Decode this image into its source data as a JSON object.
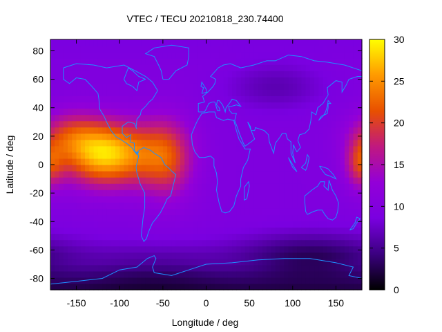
{
  "chart_data": {
    "type": "heatmap",
    "title": "VTEC / TECU 20210818_230.74400",
    "xlabel": "Longitude / deg",
    "ylabel": "Latitude / deg",
    "xlim": [
      -180,
      180
    ],
    "ylim": [
      -88,
      88
    ],
    "x_ticks": [
      -150,
      -100,
      -50,
      0,
      50,
      100,
      150
    ],
    "x_tick_labels": [
      "-150",
      "-100",
      "-50",
      "0",
      "50",
      "100",
      "150"
    ],
    "y_ticks": [
      80,
      60,
      40,
      20,
      0,
      -20,
      -40,
      -60,
      -80
    ],
    "y_tick_labels": [
      "80",
      "60",
      "40",
      "20",
      "0",
      "-20",
      "-40",
      "-60",
      "-80"
    ],
    "colorbar": {
      "range": [
        0,
        30
      ],
      "ticks": [
        0,
        5,
        10,
        15,
        20,
        25,
        30
      ],
      "tick_labels": [
        "0",
        "5",
        "10",
        "15",
        "20",
        "25",
        "30"
      ]
    },
    "grid": false,
    "overlay": "continent coastlines",
    "features": [
      {
        "lon": -115,
        "lat": 8,
        "peak": 29,
        "description": "main equatorial maximum over eastern Pacific"
      },
      {
        "lon": -45,
        "lat": 5,
        "peak": 20,
        "description": "South America / Atlantic enhancement"
      },
      {
        "lon": 175,
        "lat": 0,
        "peak": 18,
        "description": "western Pacific enhancement at date line"
      },
      {
        "lon": 110,
        "lat": -65,
        "peak": 1,
        "description": "southern high-latitude minimum"
      }
    ],
    "colors": {
      "palette": [
        "#000000",
        "#3b0080",
        "#7a00e0",
        "#9300d8",
        "#c01880",
        "#e85000",
        "#ff9a00",
        "#ffff00"
      ],
      "coastline": "#1e90ff"
    }
  }
}
